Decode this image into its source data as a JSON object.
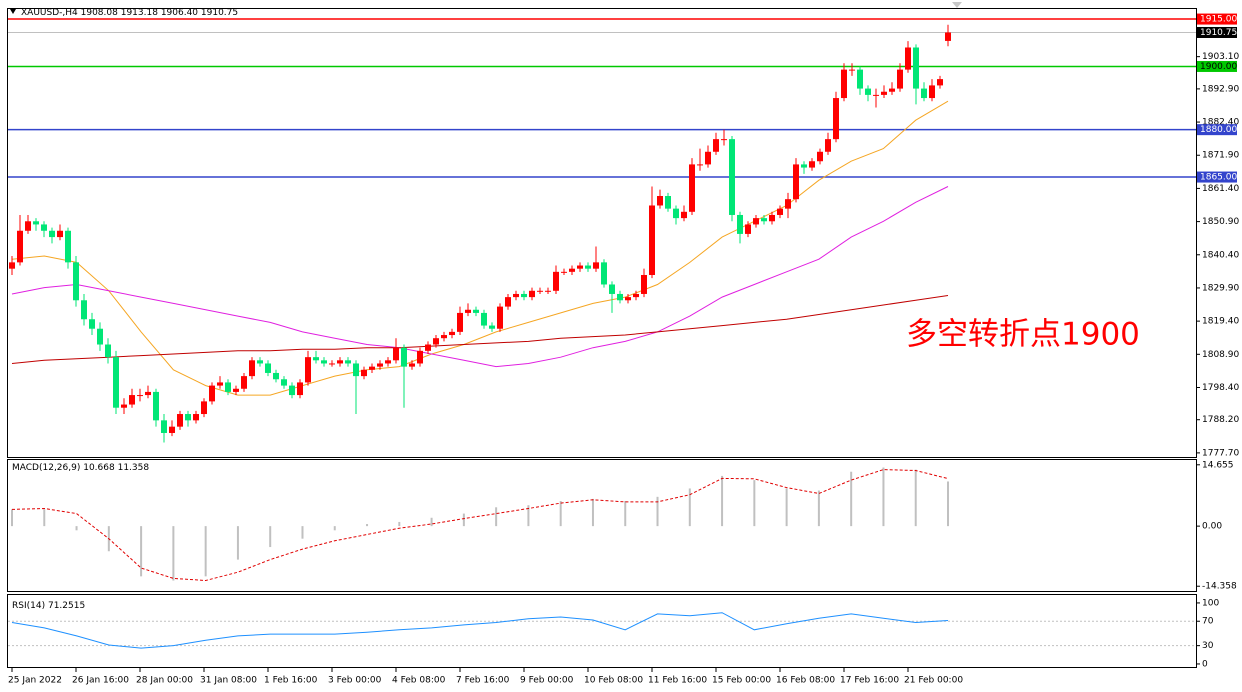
{
  "chart_data": {
    "type": "candlestick",
    "symbol": "XAUUSD-,H4",
    "last_bar_labels": [
      "1908.08",
      "1913.18",
      "1906.40",
      "1910.75"
    ],
    "annotation": "多空转折点1900",
    "up_color": "#ff0000",
    "down_color": "#00e676",
    "categories": [
      "25 Jan 2022",
      "26 Jan 16:00",
      "28 Jan 00:00",
      "31 Jan 08:00",
      "1 Feb 16:00",
      "3 Feb 00:00",
      "4 Feb 08:00",
      "7 Feb 16:00",
      "9 Feb 00:00",
      "10 Feb 08:00",
      "11 Feb 16:00",
      "15 Feb 00:00",
      "16 Feb 08:00",
      "17 Feb 16:00",
      "21 Feb 00:00"
    ],
    "ylim": [
      1776.4,
      1918.5
    ],
    "yticks": [
      {
        "value": 1903.1,
        "label": "1903.10"
      },
      {
        "value": 1892.9,
        "label": "1892.90"
      },
      {
        "value": 1882.4,
        "label": "1882.40"
      },
      {
        "value": 1871.9,
        "label": "1871.90"
      },
      {
        "value": 1861.4,
        "label": "1861.40"
      },
      {
        "value": 1850.9,
        "label": "1850.90"
      },
      {
        "value": 1840.4,
        "label": "1840.40"
      },
      {
        "value": 1829.9,
        "label": "1829.90"
      },
      {
        "value": 1819.4,
        "label": "1819.40"
      },
      {
        "value": 1808.9,
        "label": "1808.90"
      },
      {
        "value": 1798.4,
        "label": "1798.40"
      },
      {
        "value": 1788.2,
        "label": "1788.20"
      },
      {
        "value": 1777.7,
        "label": "1777.70"
      }
    ],
    "levels": [
      {
        "value": 1915,
        "label": "1915.00",
        "color": "#ff0000",
        "text_color": "#ffffff"
      },
      {
        "value": 1900,
        "label": "1900.00",
        "color": "#00c800",
        "text_color": "#000000"
      },
      {
        "value": 1880,
        "label": "1880.00",
        "color": "#3344cc",
        "text_color": "#ffffff"
      },
      {
        "value": 1865,
        "label": "1865.00",
        "color": "#3344cc",
        "text_color": "#ffffff"
      }
    ],
    "candles": [
      [
        1836,
        1840,
        1834,
        1838
      ],
      [
        1838,
        1853,
        1837,
        1848
      ],
      [
        1848,
        1853,
        1847,
        1851
      ],
      [
        1851,
        1852,
        1848,
        1850
      ],
      [
        1850,
        1851,
        1846,
        1848
      ],
      [
        1848,
        1849,
        1844,
        1846
      ],
      [
        1846,
        1850,
        1845,
        1848
      ],
      [
        1848,
        1849,
        1836,
        1838
      ],
      [
        1838,
        1840,
        1824,
        1826
      ],
      [
        1826,
        1828,
        1818,
        1820
      ],
      [
        1820,
        1822,
        1815,
        1817
      ],
      [
        1817,
        1819,
        1810,
        1812
      ],
      [
        1812,
        1814,
        1806,
        1808
      ],
      [
        1808,
        1810,
        1790,
        1792
      ],
      [
        1792,
        1795,
        1790,
        1793
      ],
      [
        1793,
        1798,
        1792,
        1796
      ],
      [
        1796,
        1798,
        1794,
        1796
      ],
      [
        1796,
        1799,
        1795,
        1797
      ],
      [
        1797,
        1798,
        1786,
        1788
      ],
      [
        1788,
        1790,
        1781,
        1784
      ],
      [
        1784,
        1788,
        1783,
        1786
      ],
      [
        1786,
        1791,
        1785,
        1790
      ],
      [
        1790,
        1791,
        1786,
        1788
      ],
      [
        1788,
        1791,
        1787,
        1790
      ],
      [
        1790,
        1795,
        1789,
        1794
      ],
      [
        1794,
        1800,
        1793,
        1799
      ],
      [
        1799,
        1802,
        1798,
        1800
      ],
      [
        1800,
        1801,
        1796,
        1797
      ],
      [
        1797,
        1799,
        1796,
        1798
      ],
      [
        1798,
        1803,
        1797,
        1802
      ],
      [
        1802,
        1808,
        1801,
        1807
      ],
      [
        1807,
        1808,
        1805,
        1806
      ],
      [
        1806,
        1807,
        1802,
        1803
      ],
      [
        1803,
        1804,
        1800,
        1801
      ],
      [
        1801,
        1802,
        1798,
        1799
      ],
      [
        1799,
        1800,
        1795,
        1796
      ],
      [
        1796,
        1801,
        1795,
        1800
      ],
      [
        1800,
        1810,
        1799,
        1808
      ],
      [
        1808,
        1810,
        1806,
        1807
      ],
      [
        1807,
        1808,
        1805,
        1806
      ],
      [
        1806,
        1807,
        1805,
        1806
      ],
      [
        1806,
        1808,
        1805,
        1807
      ],
      [
        1807,
        1808,
        1805,
        1806
      ],
      [
        1806,
        1807,
        1790,
        1802
      ],
      [
        1802,
        1805,
        1801,
        1804
      ],
      [
        1804,
        1806,
        1803,
        1805
      ],
      [
        1805,
        1807,
        1804,
        1806
      ],
      [
        1806,
        1808,
        1805,
        1807
      ],
      [
        1807,
        1814,
        1806,
        1811
      ],
      [
        1811,
        1812,
        1792,
        1805
      ],
      [
        1805,
        1807,
        1804,
        1806
      ],
      [
        1806,
        1811,
        1805,
        1810
      ],
      [
        1810,
        1813,
        1809,
        1812
      ],
      [
        1812,
        1815,
        1811,
        1814
      ],
      [
        1814,
        1816,
        1813,
        1815
      ],
      [
        1815,
        1817,
        1814,
        1816
      ],
      [
        1816,
        1824,
        1815,
        1822
      ],
      [
        1822,
        1825,
        1821,
        1823
      ],
      [
        1823,
        1824,
        1821,
        1822
      ],
      [
        1822,
        1823,
        1817,
        1818
      ],
      [
        1818,
        1819,
        1816,
        1817
      ],
      [
        1817,
        1825,
        1816,
        1824
      ],
      [
        1824,
        1828,
        1823,
        1827
      ],
      [
        1827,
        1829,
        1826,
        1828
      ],
      [
        1828,
        1829,
        1826,
        1827
      ],
      [
        1827,
        1830,
        1826,
        1829
      ],
      [
        1829,
        1830,
        1828,
        1829
      ],
      [
        1829,
        1830,
        1828,
        1829
      ],
      [
        1829,
        1837,
        1828,
        1835
      ],
      [
        1835,
        1836,
        1834,
        1835
      ],
      [
        1835,
        1837,
        1834,
        1836
      ],
      [
        1836,
        1838,
        1835,
        1837
      ],
      [
        1837,
        1838,
        1835,
        1836
      ],
      [
        1836,
        1843,
        1835,
        1838
      ],
      [
        1838,
        1839,
        1830,
        1831
      ],
      [
        1831,
        1832,
        1822,
        1828
      ],
      [
        1828,
        1829,
        1825,
        1826
      ],
      [
        1826,
        1828,
        1825,
        1827
      ],
      [
        1827,
        1829,
        1826,
        1828
      ],
      [
        1828,
        1836,
        1827,
        1834
      ],
      [
        1834,
        1862,
        1833,
        1856
      ],
      [
        1856,
        1861,
        1855,
        1859
      ],
      [
        1859,
        1860,
        1854,
        1855
      ],
      [
        1855,
        1856,
        1850,
        1852
      ],
      [
        1852,
        1856,
        1851,
        1854
      ],
      [
        1854,
        1871,
        1853,
        1869
      ],
      [
        1869,
        1874,
        1867,
        1869
      ],
      [
        1869,
        1875,
        1868,
        1873
      ],
      [
        1873,
        1879,
        1872,
        1877
      ],
      [
        1877,
        1880,
        1875,
        1877
      ],
      [
        1877,
        1878,
        1851,
        1853
      ],
      [
        1853,
        1854,
        1844,
        1847
      ],
      [
        1847,
        1851,
        1846,
        1850
      ],
      [
        1850,
        1853,
        1849,
        1852
      ],
      [
        1852,
        1853,
        1850,
        1851
      ],
      [
        1851,
        1854,
        1850,
        1853
      ],
      [
        1853,
        1856,
        1852,
        1855
      ],
      [
        1855,
        1860,
        1852,
        1858
      ],
      [
        1858,
        1871,
        1857,
        1869
      ],
      [
        1869,
        1870,
        1866,
        1868
      ],
      [
        1868,
        1871,
        1867,
        1870
      ],
      [
        1870,
        1874,
        1869,
        1873
      ],
      [
        1873,
        1879,
        1872,
        1877
      ],
      [
        1877,
        1892,
        1876,
        1890
      ],
      [
        1890,
        1901,
        1889,
        1899
      ],
      [
        1899,
        1901,
        1897,
        1899
      ],
      [
        1899,
        1900,
        1891,
        1893
      ],
      [
        1893,
        1894,
        1889,
        1891
      ],
      [
        1891,
        1893,
        1887,
        1891
      ],
      [
        1891,
        1894,
        1890,
        1892
      ],
      [
        1892,
        1895,
        1891,
        1893
      ],
      [
        1893,
        1901,
        1892,
        1899
      ],
      [
        1899,
        1908,
        1898,
        1906
      ],
      [
        1906,
        1907,
        1888,
        1893
      ],
      [
        1893,
        1895,
        1889,
        1890
      ],
      [
        1890,
        1896,
        1889,
        1894
      ],
      [
        1894,
        1897,
        1893,
        1896
      ],
      [
        1908.08,
        1913.18,
        1906.4,
        1910.75
      ]
    ],
    "moving_averages": [
      {
        "color": "#f5a623",
        "values": [
          1839,
          1840,
          1838,
          1829,
          1816,
          1804,
          1799,
          1796,
          1796,
          1799,
          1802,
          1804,
          1805,
          1809,
          1812,
          1816,
          1819,
          1822,
          1825,
          1827,
          1831,
          1838,
          1846,
          1851,
          1856,
          1864,
          1870,
          1874,
          1883,
          1889
        ]
      },
      {
        "color": "#e020e0",
        "values": [
          1828,
          1830,
          1831,
          1829,
          1827,
          1825,
          1823,
          1821,
          1819,
          1816,
          1814,
          1812,
          1811,
          1809,
          1807,
          1805,
          1806,
          1808,
          1811,
          1813,
          1816,
          1821,
          1827,
          1831,
          1835,
          1839,
          1846,
          1851,
          1857,
          1862
        ]
      },
      {
        "color": "#c00000",
        "values": [
          1806,
          1807,
          1807.5,
          1808,
          1808.5,
          1809,
          1809.5,
          1810,
          1810,
          1810.5,
          1810.5,
          1811,
          1811,
          1811.5,
          1812,
          1812.5,
          1813,
          1814,
          1814.5,
          1815,
          1816,
          1817,
          1818,
          1819,
          1820,
          1821.5,
          1823,
          1824.5,
          1826,
          1827.5
        ]
      }
    ],
    "macd": {
      "label": "MACD(12,26,9)",
      "ylim": [
        -15.5,
        15.8
      ],
      "yticks": [
        14.655,
        {
          "value": 0,
          "label": "0.00"
        },
        -14.358
      ],
      "histogram": {
        "color": "#c0c0c0",
        "values": [
          4,
          4,
          -1,
          -6,
          -12,
          -13,
          -12,
          -8,
          -5,
          -3,
          -1,
          0.5,
          1,
          2,
          3,
          4.5,
          5,
          6,
          6.5,
          6,
          7,
          9,
          12,
          11,
          9,
          8.5,
          13,
          14,
          13.5,
          10.668
        ]
      },
      "signal": {
        "color": "#e00000",
        "values": [
          4,
          4.2,
          3,
          -3,
          -10,
          -12.5,
          -13,
          -11,
          -8,
          -5.5,
          -3.5,
          -2,
          -0.5,
          0.5,
          1.8,
          3,
          4.2,
          5.5,
          6.3,
          5.8,
          5.8,
          7.5,
          11.4,
          11.3,
          9.2,
          7.8,
          11,
          13.5,
          13.3,
          11.358
        ]
      }
    },
    "rsi": {
      "label": "RSI(14)",
      "ylim": [
        -5,
        113
      ],
      "yticks": [
        100,
        70,
        30,
        0
      ],
      "levels": [
        70,
        30
      ],
      "color": "#1e90ff",
      "values": [
        68,
        59,
        46,
        31,
        26,
        30,
        39,
        46,
        49,
        49,
        49,
        52,
        56,
        59,
        64,
        68,
        74,
        77,
        72,
        56,
        82,
        79,
        84,
        56,
        66,
        75,
        82,
        75,
        68,
        71.2515
      ]
    }
  }
}
